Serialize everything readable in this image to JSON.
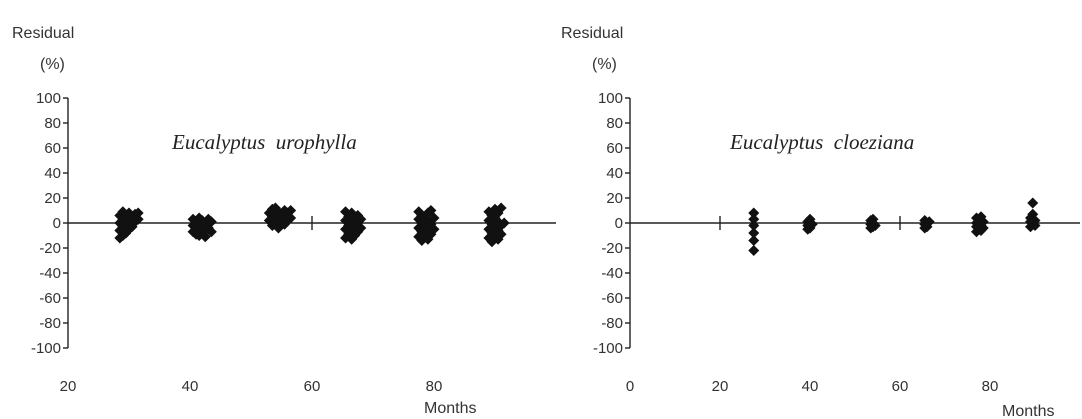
{
  "chart_data": [
    {
      "type": "scatter",
      "title": "Eucalyptus  urophylla",
      "ylabel": "Residual",
      "ylabel_unit": "(%)",
      "xlabel": "Months",
      "xlim": [
        20,
        100
      ],
      "ylim": [
        -100,
        100
      ],
      "x_ticks": [
        20,
        40,
        60,
        80
      ],
      "y_ticks": [
        100,
        80,
        60,
        40,
        20,
        0,
        -20,
        -40,
        -60,
        -80,
        -100
      ],
      "y_tick_labels": [
        "100",
        "80",
        "60",
        "40",
        "20",
        "0",
        "-20",
        "-40",
        "-60",
        "-80",
        "-100"
      ],
      "x_tick_labels": [
        "20",
        "40",
        "60",
        "80"
      ],
      "grid": false,
      "color": "#111111",
      "series": [
        {
          "points": [
            [
              28.5,
              -12
            ],
            [
              28.5,
              -6
            ],
            [
              28.5,
              0
            ],
            [
              28.5,
              6
            ],
            [
              29.0,
              -10
            ],
            [
              29.0,
              -3
            ],
            [
              29.0,
              3
            ],
            [
              29.0,
              9
            ],
            [
              29.5,
              -8
            ],
            [
              29.5,
              -1
            ],
            [
              29.5,
              5
            ],
            [
              30.0,
              -5
            ],
            [
              30.0,
              2
            ],
            [
              30.0,
              8
            ],
            [
              30.5,
              -3
            ],
            [
              30.5,
              4
            ],
            [
              31.0,
              1
            ],
            [
              31.0,
              7
            ],
            [
              31.5,
              3
            ],
            [
              31.5,
              8
            ],
            [
              40.5,
              -7
            ],
            [
              40.5,
              -2
            ],
            [
              40.5,
              3
            ],
            [
              41.0,
              -9
            ],
            [
              41.0,
              -4
            ],
            [
              41.0,
              1
            ],
            [
              41.5,
              -10
            ],
            [
              41.5,
              -5
            ],
            [
              41.5,
              0
            ],
            [
              41.5,
              4
            ],
            [
              42.0,
              -8
            ],
            [
              42.0,
              -3
            ],
            [
              42.0,
              2
            ],
            [
              42.5,
              -11
            ],
            [
              42.5,
              -6
            ],
            [
              42.5,
              0
            ],
            [
              43.0,
              -4
            ],
            [
              43.0,
              3
            ],
            [
              43.5,
              -7
            ],
            [
              43.5,
              1
            ],
            [
              53.0,
              2
            ],
            [
              53.0,
              8
            ],
            [
              53.5,
              -2
            ],
            [
              53.5,
              5
            ],
            [
              53.5,
              11
            ],
            [
              54.0,
              0
            ],
            [
              54.0,
              6
            ],
            [
              54.0,
              12
            ],
            [
              54.5,
              -4
            ],
            [
              54.5,
              3
            ],
            [
              54.5,
              9
            ],
            [
              55.0,
              1
            ],
            [
              55.0,
              7
            ],
            [
              55.5,
              -1
            ],
            [
              55.5,
              5
            ],
            [
              55.5,
              10
            ],
            [
              56.0,
              2
            ],
            [
              56.0,
              8
            ],
            [
              56.5,
              4
            ],
            [
              56.5,
              10
            ],
            [
              65.5,
              -12
            ],
            [
              65.5,
              -5
            ],
            [
              65.5,
              2
            ],
            [
              65.5,
              9
            ],
            [
              66.0,
              -9
            ],
            [
              66.0,
              -2
            ],
            [
              66.0,
              5
            ],
            [
              66.5,
              -13
            ],
            [
              66.5,
              -6
            ],
            [
              66.5,
              1
            ],
            [
              66.5,
              8
            ],
            [
              67.0,
              -10
            ],
            [
              67.0,
              -3
            ],
            [
              67.0,
              4
            ],
            [
              67.5,
              -7
            ],
            [
              67.5,
              0
            ],
            [
              67.5,
              6
            ],
            [
              68.0,
              -4
            ],
            [
              68.0,
              3
            ],
            [
              77.5,
              -11
            ],
            [
              77.5,
              -4
            ],
            [
              77.5,
              3
            ],
            [
              77.5,
              9
            ],
            [
              78.0,
              -14
            ],
            [
              78.0,
              -7
            ],
            [
              78.0,
              0
            ],
            [
              78.0,
              6
            ],
            [
              78.5,
              -10
            ],
            [
              78.5,
              -2
            ],
            [
              78.5,
              5
            ],
            [
              79.0,
              -13
            ],
            [
              79.0,
              -6
            ],
            [
              79.0,
              1
            ],
            [
              79.0,
              8
            ],
            [
              79.5,
              -9
            ],
            [
              79.5,
              -1
            ],
            [
              79.5,
              10
            ],
            [
              80.0,
              -5
            ],
            [
              80.0,
              4
            ],
            [
              89.0,
              -12
            ],
            [
              89.0,
              -5
            ],
            [
              89.0,
              2
            ],
            [
              89.0,
              9
            ],
            [
              89.5,
              -15
            ],
            [
              89.5,
              -8
            ],
            [
              89.5,
              -1
            ],
            [
              89.5,
              6
            ],
            [
              90.0,
              -10
            ],
            [
              90.0,
              -3
            ],
            [
              90.0,
              4
            ],
            [
              90.0,
              11
            ],
            [
              90.5,
              -13
            ],
            [
              90.5,
              -6
            ],
            [
              90.5,
              1
            ],
            [
              90.5,
              8
            ],
            [
              91.0,
              -9
            ],
            [
              91.0,
              -2
            ],
            [
              91.0,
              12
            ],
            [
              91.5,
              0
            ]
          ]
        }
      ]
    },
    {
      "type": "scatter",
      "title": "Eucalyptus  cloeziana",
      "ylabel": "Residual",
      "ylabel_unit": "(%)",
      "xlabel": "Months",
      "xlim": [
        0,
        100
      ],
      "ylim": [
        -100,
        100
      ],
      "x_ticks": [
        0,
        20,
        40,
        60,
        80
      ],
      "y_ticks": [
        100,
        80,
        60,
        40,
        20,
        0,
        -20,
        -40,
        -60,
        -80,
        -100
      ],
      "y_tick_labels": [
        "100",
        "80",
        "60",
        "40",
        "20",
        "0",
        "-20",
        "-40",
        "-60",
        "-80",
        "-100"
      ],
      "x_tick_labels": [
        "0",
        "20",
        "40",
        "60",
        "80"
      ],
      "grid": false,
      "color": "#111111",
      "series": [
        {
          "points": [
            [
              27.5,
              -22
            ],
            [
              27.5,
              -14
            ],
            [
              27.5,
              -8
            ],
            [
              27.5,
              -2
            ],
            [
              27.5,
              3
            ],
            [
              27.5,
              8
            ],
            [
              39.5,
              -5
            ],
            [
              39.5,
              -2
            ],
            [
              39.5,
              1
            ],
            [
              40.0,
              -4
            ],
            [
              40.0,
              0
            ],
            [
              40.0,
              3
            ],
            [
              40.5,
              -1
            ],
            [
              53.5,
              -4
            ],
            [
              53.5,
              -1
            ],
            [
              53.5,
              2
            ],
            [
              54.0,
              -3
            ],
            [
              54.0,
              0
            ],
            [
              54.0,
              3
            ],
            [
              54.5,
              -2
            ],
            [
              65.5,
              -4
            ],
            [
              65.5,
              -1
            ],
            [
              65.5,
              2
            ],
            [
              66.0,
              -3
            ],
            [
              66.0,
              0
            ],
            [
              66.5,
              1
            ],
            [
              77.0,
              -7
            ],
            [
              77.0,
              -3
            ],
            [
              77.0,
              0
            ],
            [
              77.0,
              4
            ],
            [
              77.5,
              -5
            ],
            [
              77.5,
              -1
            ],
            [
              77.5,
              2
            ],
            [
              78.0,
              -6
            ],
            [
              78.0,
              -2
            ],
            [
              78.0,
              5
            ],
            [
              78.5,
              -4
            ],
            [
              78.5,
              1
            ],
            [
              89.0,
              -3
            ],
            [
              89.0,
              1
            ],
            [
              89.0,
              4
            ],
            [
              89.5,
              16
            ],
            [
              89.5,
              7
            ],
            [
              89.5,
              -1
            ],
            [
              90.0,
              2
            ],
            [
              90.0,
              -2
            ]
          ]
        }
      ]
    }
  ]
}
